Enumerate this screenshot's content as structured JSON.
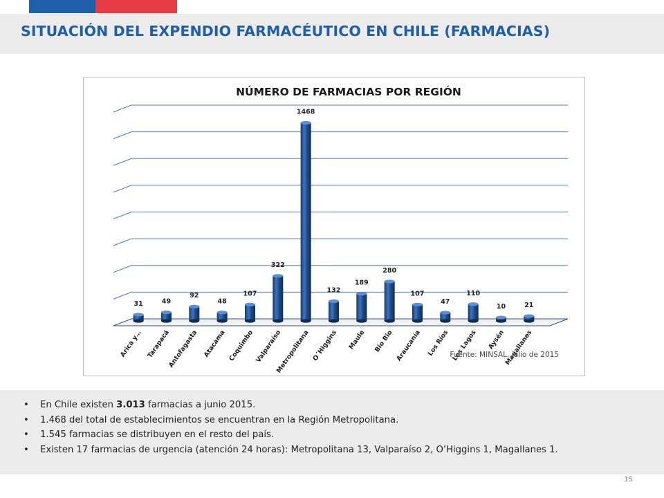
{
  "header": {
    "title": "SITUACIÓN DEL EXPENDIO FARMACÉUTICO EN CHILE (FARMACIAS)",
    "flag_colors": [
      "#1f5ea8",
      "#e63b45"
    ],
    "title_color": "#1f5ea8"
  },
  "chart_data": {
    "type": "bar",
    "title": "NÚMERO DE FARMACIAS POR REGIÓN",
    "categories": [
      "Arica y…",
      "Tarapacá",
      "Antofagasta",
      "Atacama",
      "Coquimbo",
      "Valparaíso",
      "Metropolitana",
      "O´Higgins",
      "Maule",
      "Bio Bio",
      "Araucanía",
      "Los Ríos",
      "Los Lagos",
      "Aysén",
      "Magallanes"
    ],
    "values": [
      31,
      49,
      92,
      48,
      107,
      322,
      1468,
      132,
      189,
      280,
      107,
      47,
      110,
      10,
      21
    ],
    "ylim": [
      0,
      1600
    ],
    "gridlines": true,
    "style": "3d-cylinder",
    "bar_color": "#1f4e8c",
    "source": "Fuente: MINSAL, julio de 2015"
  },
  "bullets": [
    {
      "pre": "En Chile existen ",
      "bold": "3.013",
      "post": " farmacias a junio 2015."
    },
    {
      "pre": "1.468 del total de establecimientos se encuentran en la Región Metropolitana.",
      "bold": "",
      "post": ""
    },
    {
      "pre": "1.545 farmacias se distribuyen en el resto del país.",
      "bold": "",
      "post": ""
    },
    {
      "pre": "Existen 17 farmacias de urgencia (atención 24 horas): Metropolitana 13, Valparaíso 2, O’Higgins 1, Magallanes 1.",
      "bold": "",
      "post": ""
    }
  ],
  "bullet_symbol": "•",
  "page_number": "15"
}
